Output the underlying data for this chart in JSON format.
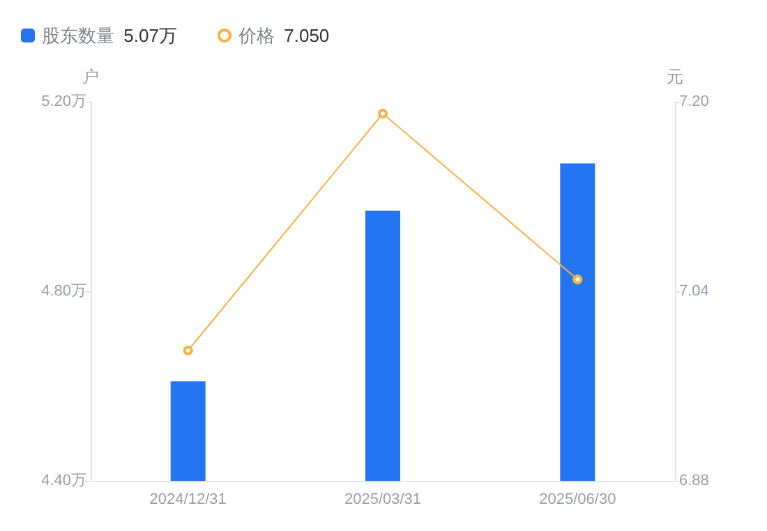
{
  "chart_data": {
    "type": "bar",
    "categories": [
      "2024/12/31",
      "2025/03/31",
      "2025/06/30"
    ],
    "series": [
      {
        "name": "股东数量",
        "color": "#2475f2",
        "values": [
          4.61,
          4.97,
          5.07
        ]
      },
      {
        "name": "价格",
        "type": "line",
        "axis": "y2",
        "color": "#f8b243",
        "values": [
          6.99,
          7.19,
          7.05
        ]
      }
    ],
    "ylabel": "户",
    "y2label": "元",
    "ylim": [
      4.4,
      5.2
    ],
    "yticks": [
      {
        "value": 4.4,
        "label": "4.40万"
      },
      {
        "value": 4.8,
        "label": "4.80万"
      },
      {
        "value": 5.2,
        "label": "5.20万"
      }
    ],
    "y2lim": [
      6.88,
      7.2
    ],
    "y2ticks": [
      {
        "value": 6.88,
        "label": "6.88"
      },
      {
        "value": 7.04,
        "label": "7.04"
      },
      {
        "value": 7.2,
        "label": "7.20"
      }
    ],
    "annotations": [
      "5.07万",
      "7.050"
    ],
    "legend": "top left",
    "grid": false,
    "marker": "circle",
    "line_style": "solid"
  }
}
